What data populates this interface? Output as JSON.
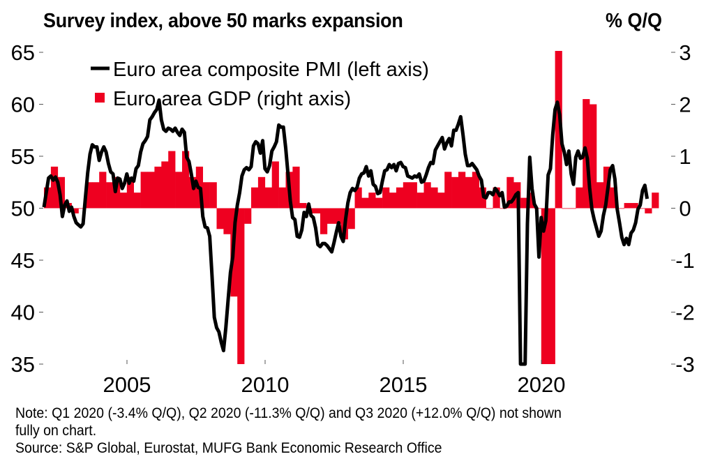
{
  "titles": {
    "left": "Survey index, above 50 marks expansion",
    "right": "% Q/Q"
  },
  "notes": {
    "line1": "Note: Q1 2020 (-3.4% Q/Q), Q2 2020 (-11.3% Q/Q) and Q3 2020 (+12.0% Q/Q) not shown",
    "line2": "fully on chart.",
    "source": "Source: S&P Global, Eurostat, MUFG Bank Economic Research Office"
  },
  "colors": {
    "pmi_line": "#000000",
    "gdp_bar": "#ee0020"
  },
  "chart_data": {
    "type": "bar+line",
    "title": "Survey index, above 50 marks expansion",
    "ylabel_left": "Survey index",
    "ylabel_right": "% Q/Q",
    "ylim_left": [
      35,
      65
    ],
    "ylim_right": [
      -3,
      3
    ],
    "yticks_left": [
      "65",
      "60",
      "55",
      "50",
      "45",
      "40",
      "35"
    ],
    "yticks_right": [
      "3",
      "2",
      "1",
      "0",
      "-1",
      "-2",
      "-3"
    ],
    "xticks": [
      "2005",
      "2010",
      "2015",
      "2020"
    ],
    "xlim": [
      2002.0,
      2024.4
    ],
    "grid": false,
    "legend_position": "top-left",
    "legend": [
      {
        "name": "Euro area composite PMI (left axis)",
        "type": "line"
      },
      {
        "name": "Euro area GDP (right axis)",
        "type": "bar"
      }
    ],
    "series": [
      {
        "name": "Euro area GDP (right axis)",
        "axis": "right",
        "frequency": "quarterly",
        "start": "2002Q1",
        "values": [
          0.4,
          0.8,
          0.6,
          0.1,
          -0.1,
          0.0,
          0.5,
          0.5,
          0.7,
          0.5,
          0.6,
          0.3,
          0.6,
          0.3,
          0.7,
          0.7,
          0.8,
          0.9,
          1.1,
          0.7,
          1.1,
          0.6,
          0.8,
          0.5,
          0.5,
          -0.4,
          -0.5,
          -1.7,
          -3.0,
          -0.3,
          0.4,
          0.6,
          0.4,
          0.9,
          0.4,
          0.7,
          0.8,
          0.1,
          -0.1,
          -0.1,
          -0.5,
          -0.3,
          -0.3,
          -0.6,
          -0.4,
          0.4,
          0.2,
          0.3,
          0.2,
          0.4,
          0.3,
          0.4,
          0.5,
          0.5,
          0.3,
          0.5,
          0.4,
          0.3,
          0.7,
          0.6,
          0.7,
          0.6,
          0.7,
          0.4,
          0.0,
          0.4,
          0.0,
          0.6,
          0.5,
          0.2,
          0.3,
          0.0,
          -3.4,
          -11.3,
          12.0,
          0.0,
          0.0,
          0.4,
          2.1,
          2.0,
          0.5,
          0.8,
          0.4,
          0.0,
          0.1,
          0.1,
          0.0,
          -0.1,
          0.3
        ]
      },
      {
        "name": "Euro area composite PMI (left axis)",
        "axis": "left",
        "frequency": "monthly",
        "start": "2002-01",
        "values": [
          50.1,
          51.5,
          52.9,
          53.1,
          52.7,
          53.0,
          52.5,
          51.3,
          49.2,
          50.3,
          50.7,
          49.7,
          50.1,
          49.2,
          48.6,
          48.4,
          48.2,
          48.5,
          51.0,
          53.4,
          55.2,
          56.1,
          55.9,
          55.9,
          54.6,
          55.4,
          55.9,
          55.4,
          54.3,
          53.5,
          53.3,
          51.6,
          52.9,
          52.8,
          51.9,
          52.4,
          53.3,
          52.4,
          52.9,
          52.6,
          53.8,
          54.1,
          55.4,
          56.2,
          56.5,
          56.9,
          58.5,
          58.8,
          59.2,
          59.5,
          60.4,
          58.5,
          57.6,
          57.4,
          57.7,
          57.6,
          57.4,
          57.7,
          57.3,
          57.0,
          57.6,
          57.3,
          54.9,
          54.5,
          53.3,
          51.9,
          52.6,
          52.0,
          51.9,
          49.2,
          48.2,
          48.1,
          47.3,
          43.5,
          39.5,
          38.5,
          38.1,
          37.1,
          36.3,
          38.5,
          41.2,
          43.8,
          45.3,
          48.6,
          50.3,
          51.5,
          53.1,
          53.7,
          53.9,
          53.7,
          54.0,
          56.0,
          56.4,
          56.2,
          55.3,
          56.5,
          53.8,
          53.5,
          54.1,
          55.5,
          55.9,
          56.4,
          58.0,
          57.8,
          57.8,
          55.8,
          53.3,
          50.7,
          49.1,
          48.9,
          47.3,
          47.2,
          47.9,
          49.6,
          49.2,
          50.4,
          49.3,
          49.1,
          48.1,
          46.5,
          46.3,
          46.6,
          46.6,
          46.4,
          46.1,
          45.8,
          46.7,
          47.7,
          48.6,
          47.3,
          46.8,
          48.9,
          50.5,
          51.5,
          51.9,
          51.7,
          52.0,
          52.9,
          53.3,
          53.4,
          54.0,
          53.1,
          53.6,
          52.3,
          52.1,
          51.4,
          51.5,
          52.6,
          53.6,
          53.7,
          54.2,
          53.9,
          54.2,
          53.6,
          54.3,
          54.4,
          54.0,
          53.9,
          53.1,
          53.0,
          52.9,
          53.1,
          53.0,
          53.3,
          52.5,
          52.6,
          53.2,
          53.9,
          54.4,
          54.3,
          55.6,
          56.0,
          56.4,
          56.8,
          55.7,
          56.3,
          56.7,
          56.0,
          57.5,
          57.5,
          58.1,
          58.8,
          57.1,
          55.2,
          54.1,
          54.1,
          54.3,
          54.0,
          53.7,
          53.1,
          52.7,
          51.1,
          51.0,
          51.5,
          51.5,
          51.3,
          51.9,
          51.6,
          51.2,
          51.5,
          50.1,
          50.2,
          50.6,
          50.6,
          50.9,
          51.3,
          51.5,
          29.7,
          13.6,
          31.9,
          48.5,
          54.9,
          51.9,
          50.4,
          50.0,
          45.3,
          49.1,
          47.8,
          48.8,
          53.2,
          53.8,
          57.1,
          59.5,
          60.2,
          59.0,
          56.2,
          55.4,
          54.2,
          55.5,
          53.3,
          52.3,
          54.9,
          55.5,
          54.8,
          54.9,
          55.8,
          54.8,
          52.0,
          49.9,
          48.9,
          48.1,
          47.3,
          47.8,
          49.3,
          50.3,
          52.0,
          53.7,
          54.1,
          52.8,
          49.9,
          48.6,
          47.2,
          46.5,
          47.1,
          46.5,
          47.6,
          47.9,
          48.6,
          49.9,
          50.3,
          51.7,
          52.2,
          50.9
        ]
      }
    ]
  }
}
